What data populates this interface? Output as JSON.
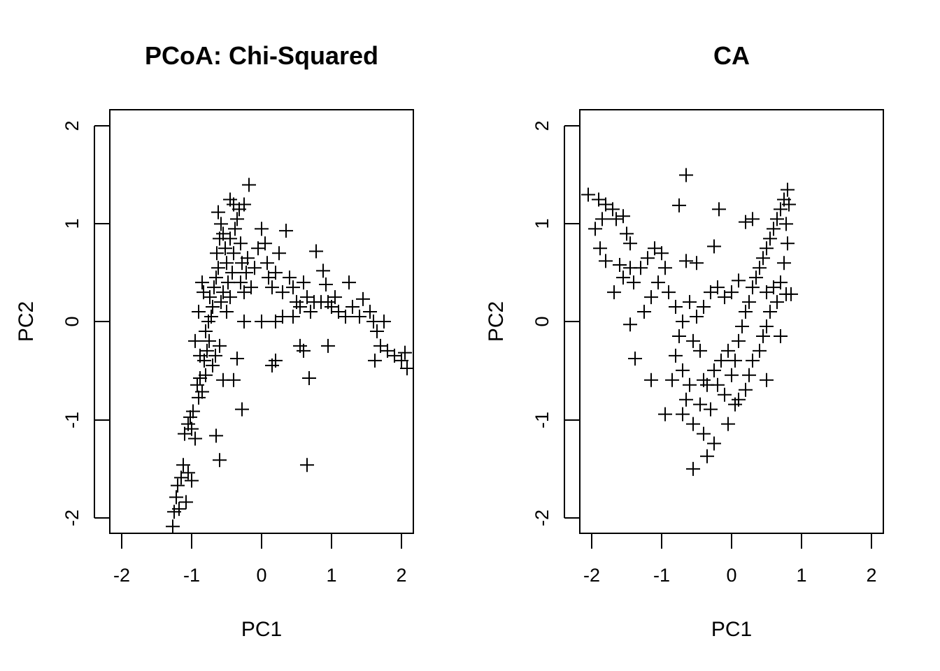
{
  "chart_data": [
    {
      "type": "scatter",
      "title": "PCoA: Chi-Squared",
      "xlabel": "PC1",
      "ylabel": "PC2",
      "xlim": [
        -2.17,
        2.17
      ],
      "ylim": [
        -2.17,
        2.17
      ],
      "x_ticks": [
        "-2",
        "-1",
        "0",
        "1",
        "2"
      ],
      "y_ticks": [
        "-2",
        "-1",
        "0",
        "1",
        "2"
      ],
      "marker": "+",
      "grid": false,
      "points": [
        [
          -1.27,
          -2.1
        ],
        [
          -1.25,
          -1.95
        ],
        [
          -1.22,
          -1.8
        ],
        [
          -1.2,
          -1.68
        ],
        [
          -1.15,
          -1.6
        ],
        [
          -1.12,
          -1.47
        ],
        [
          -1.05,
          -1.55
        ],
        [
          -1.0,
          -1.63
        ],
        [
          -1.08,
          -1.85
        ],
        [
          -1.18,
          -1.92
        ],
        [
          -1.1,
          -1.15
        ],
        [
          -1.05,
          -1.05
        ],
        [
          -1.02,
          -0.98
        ],
        [
          -0.98,
          -0.92
        ],
        [
          -1.0,
          -1.1
        ],
        [
          -0.95,
          -1.2
        ],
        [
          -0.9,
          -0.78
        ],
        [
          -0.92,
          -0.65
        ],
        [
          -0.88,
          -0.58
        ],
        [
          -0.85,
          -0.72
        ],
        [
          -0.8,
          -0.55
        ],
        [
          -0.82,
          -0.4
        ],
        [
          -0.78,
          -0.3
        ],
        [
          -0.75,
          -0.2
        ],
        [
          -0.8,
          -0.1
        ],
        [
          -0.76,
          0.0
        ],
        [
          -0.72,
          0.05
        ],
        [
          -0.7,
          0.15
        ],
        [
          -0.74,
          0.25
        ],
        [
          -0.68,
          0.35
        ],
        [
          -0.65,
          0.45
        ],
        [
          -0.62,
          0.55
        ],
        [
          -0.66,
          -0.35
        ],
        [
          -0.7,
          -0.45
        ],
        [
          -0.6,
          -0.25
        ],
        [
          -0.64,
          0.7
        ],
        [
          -0.6,
          0.85
        ],
        [
          -0.58,
          1.0
        ],
        [
          -0.62,
          1.12
        ],
        [
          -0.55,
          0.9
        ],
        [
          -0.52,
          0.75
        ],
        [
          -0.5,
          0.6
        ],
        [
          -0.48,
          0.4
        ],
        [
          -0.55,
          0.3
        ],
        [
          -0.58,
          0.2
        ],
        [
          -0.5,
          0.1
        ],
        [
          -0.45,
          0.25
        ],
        [
          -0.42,
          0.5
        ],
        [
          -0.4,
          0.7
        ],
        [
          -0.45,
          0.85
        ],
        [
          -0.38,
          0.95
        ],
        [
          -0.35,
          1.05
        ],
        [
          -0.4,
          1.2
        ],
        [
          -0.32,
          1.15
        ],
        [
          -0.3,
          0.8
        ],
        [
          -0.28,
          0.6
        ],
        [
          -0.3,
          0.4
        ],
        [
          -0.25,
          0.3
        ],
        [
          -0.22,
          0.5
        ],
        [
          -0.2,
          0.65
        ],
        [
          -0.18,
          1.4
        ],
        [
          -0.45,
          1.25
        ],
        [
          -0.25,
          1.2
        ],
        [
          -0.15,
          0.35
        ],
        [
          -0.1,
          0.55
        ],
        [
          -0.05,
          0.75
        ],
        [
          0.0,
          0.95
        ],
        [
          0.05,
          0.8
        ],
        [
          0.08,
          0.6
        ],
        [
          0.1,
          0.45
        ],
        [
          0.15,
          0.35
        ],
        [
          0.2,
          0.5
        ],
        [
          0.25,
          0.7
        ],
        [
          0.35,
          0.93
        ],
        [
          0.3,
          0.3
        ],
        [
          0.4,
          0.45
        ],
        [
          0.45,
          0.35
        ],
        [
          0.5,
          0.2
        ],
        [
          0.55,
          0.15
        ],
        [
          0.6,
          0.4
        ],
        [
          0.65,
          0.25
        ],
        [
          0.7,
          0.1
        ],
        [
          0.78,
          0.72
        ],
        [
          0.88,
          0.52
        ],
        [
          0.92,
          0.38
        ],
        [
          0.95,
          0.2
        ],
        [
          1.0,
          0.15
        ],
        [
          1.05,
          0.25
        ],
        [
          1.1,
          0.1
        ],
        [
          1.2,
          0.05
        ],
        [
          1.25,
          0.4
        ],
        [
          1.3,
          0.15
        ],
        [
          1.4,
          0.05
        ],
        [
          1.45,
          0.23
        ],
        [
          1.55,
          0.1
        ],
        [
          1.6,
          0.0
        ],
        [
          1.65,
          -0.1
        ],
        [
          1.7,
          -0.25
        ],
        [
          1.75,
          0.0
        ],
        [
          1.8,
          -0.3
        ],
        [
          1.9,
          -0.35
        ],
        [
          2.0,
          -0.4
        ],
        [
          2.05,
          -0.32
        ],
        [
          2.08,
          -0.48
        ],
        [
          1.62,
          -0.4
        ],
        [
          -0.85,
          0.4
        ],
        [
          -0.9,
          0.1
        ],
        [
          -0.95,
          -0.2
        ],
        [
          -0.88,
          -0.35
        ],
        [
          -0.83,
          0.3
        ],
        [
          -0.55,
          -0.6
        ],
        [
          -0.4,
          -0.6
        ],
        [
          -0.35,
          -0.38
        ],
        [
          -0.25,
          0.0
        ],
        [
          0.0,
          0.0
        ],
        [
          -0.28,
          -0.9
        ],
        [
          -0.6,
          -1.42
        ],
        [
          -0.65,
          -1.17
        ],
        [
          0.15,
          -0.45
        ],
        [
          0.2,
          -0.4
        ],
        [
          0.65,
          -1.47
        ],
        [
          0.68,
          -0.58
        ],
        [
          0.6,
          -0.3
        ],
        [
          0.55,
          -0.25
        ],
        [
          0.95,
          -0.25
        ],
        [
          0.2,
          0.0
        ],
        [
          0.3,
          0.05
        ],
        [
          0.45,
          0.05
        ],
        [
          0.75,
          0.2
        ],
        [
          0.85,
          0.2
        ]
      ]
    },
    {
      "type": "scatter",
      "title": "CA",
      "xlabel": "PC1",
      "ylabel": "PC2",
      "xlim": [
        -2.17,
        2.17
      ],
      "ylim": [
        -2.17,
        2.17
      ],
      "x_ticks": [
        "-2",
        "-1",
        "0",
        "1",
        "2"
      ],
      "y_ticks": [
        "-2",
        "-1",
        "0",
        "1",
        "2"
      ],
      "marker": "+",
      "grid": false,
      "points": [
        [
          -2.05,
          1.3
        ],
        [
          -1.9,
          1.25
        ],
        [
          -1.8,
          1.2
        ],
        [
          -1.85,
          1.05
        ],
        [
          -1.95,
          0.95
        ],
        [
          -1.88,
          0.75
        ],
        [
          -1.8,
          0.62
        ],
        [
          -1.7,
          1.15
        ],
        [
          -1.65,
          1.05
        ],
        [
          -1.55,
          1.08
        ],
        [
          -1.5,
          0.9
        ],
        [
          -1.45,
          0.8
        ],
        [
          -1.6,
          0.58
        ],
        [
          -1.55,
          0.45
        ],
        [
          -1.68,
          0.3
        ],
        [
          -1.45,
          0.55
        ],
        [
          -1.4,
          0.4
        ],
        [
          -1.3,
          0.55
        ],
        [
          -1.2,
          0.65
        ],
        [
          -1.1,
          0.75
        ],
        [
          -1.0,
          0.7
        ],
        [
          -0.95,
          0.55
        ],
        [
          -1.05,
          0.4
        ],
        [
          -1.15,
          0.25
        ],
        [
          -1.25,
          0.1
        ],
        [
          -1.38,
          -0.38
        ],
        [
          -1.45,
          -0.03
        ],
        [
          -0.65,
          1.5
        ],
        [
          -0.75,
          1.19
        ],
        [
          -0.18,
          1.15
        ],
        [
          -0.25,
          0.77
        ],
        [
          -0.9,
          0.3
        ],
        [
          -0.8,
          0.15
        ],
        [
          -0.7,
          0.0
        ],
        [
          -0.75,
          -0.15
        ],
        [
          -0.8,
          -0.35
        ],
        [
          -0.7,
          -0.5
        ],
        [
          -0.6,
          -0.65
        ],
        [
          -0.65,
          -0.8
        ],
        [
          -0.7,
          -0.95
        ],
        [
          -0.55,
          -1.05
        ],
        [
          -0.4,
          -1.15
        ],
        [
          -0.25,
          -1.25
        ],
        [
          -0.35,
          -1.38
        ],
        [
          -0.55,
          -1.51
        ],
        [
          -0.45,
          -0.85
        ],
        [
          -0.35,
          -0.65
        ],
        [
          -0.25,
          -0.5
        ],
        [
          -0.15,
          -0.4
        ],
        [
          -0.05,
          -0.3
        ],
        [
          0.0,
          -0.55
        ],
        [
          -0.1,
          -0.75
        ],
        [
          0.05,
          -0.85
        ],
        [
          0.1,
          -0.8
        ],
        [
          -0.05,
          -1.05
        ],
        [
          0.05,
          -0.4
        ],
        [
          0.1,
          -0.2
        ],
        [
          0.15,
          -0.05
        ],
        [
          0.2,
          0.1
        ],
        [
          0.25,
          0.2
        ],
        [
          0.3,
          0.35
        ],
        [
          0.35,
          0.45
        ],
        [
          0.4,
          0.55
        ],
        [
          0.45,
          0.65
        ],
        [
          0.5,
          0.75
        ],
        [
          0.55,
          0.85
        ],
        [
          0.6,
          0.95
        ],
        [
          0.65,
          1.05
        ],
        [
          0.7,
          1.15
        ],
        [
          0.75,
          1.25
        ],
        [
          0.8,
          1.35
        ],
        [
          0.82,
          1.2
        ],
        [
          0.78,
          1.0
        ],
        [
          0.8,
          0.8
        ],
        [
          0.75,
          0.6
        ],
        [
          0.7,
          0.4
        ],
        [
          0.78,
          0.28
        ],
        [
          0.85,
          0.28
        ],
        [
          0.65,
          0.2
        ],
        [
          0.55,
          0.1
        ],
        [
          0.5,
          -0.05
        ],
        [
          0.45,
          -0.15
        ],
        [
          0.4,
          -0.3
        ],
        [
          0.3,
          -0.4
        ],
        [
          0.25,
          -0.55
        ],
        [
          0.5,
          -0.6
        ],
        [
          0.7,
          -0.15
        ],
        [
          0.2,
          -0.7
        ],
        [
          0.3,
          1.05
        ],
        [
          0.2,
          1.02
        ],
        [
          0.1,
          0.42
        ],
        [
          0.0,
          0.3
        ],
        [
          -0.1,
          0.25
        ],
        [
          -0.2,
          0.35
        ],
        [
          -0.3,
          0.3
        ],
        [
          -0.4,
          0.15
        ],
        [
          -0.5,
          0.05
        ],
        [
          -0.6,
          0.2
        ],
        [
          -0.45,
          -0.3
        ],
        [
          -0.55,
          -0.2
        ],
        [
          -0.85,
          -0.6
        ],
        [
          -0.95,
          -0.95
        ],
        [
          -1.15,
          -0.6
        ],
        [
          -0.65,
          0.62
        ],
        [
          -0.5,
          0.6
        ],
        [
          -0.4,
          -0.6
        ],
        [
          -0.3,
          -0.9
        ],
        [
          -0.2,
          -0.65
        ],
        [
          0.6,
          0.35
        ],
        [
          0.5,
          0.3
        ]
      ]
    }
  ]
}
